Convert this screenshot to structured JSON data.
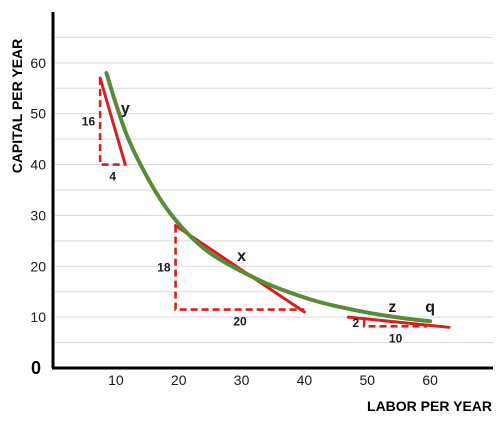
{
  "colors": {
    "curve": "#5a8a3a",
    "tangent": "#d42020",
    "triangle": "#d42020",
    "grid": "#d9d9d9",
    "axis": "#000000"
  },
  "chart_data": {
    "type": "line",
    "title": "",
    "xlabel": "LABOR PER YEAR",
    "ylabel": "CAPITAL PER YEAR",
    "xlim": [
      0,
      70
    ],
    "ylim": [
      0,
      70
    ],
    "origin_label": "0",
    "x_ticks": [
      10,
      20,
      30,
      40,
      50,
      60
    ],
    "y_ticks": [
      10,
      20,
      30,
      40,
      50,
      60
    ],
    "grid": "horizontal",
    "series": [
      {
        "x": [
          8.5,
          10,
          12,
          15,
          18,
          21,
          24,
          27,
          30,
          34,
          38,
          42,
          46,
          50,
          54,
          57,
          60
        ],
        "y": [
          58,
          52,
          45,
          37.5,
          31.5,
          27,
          23.5,
          21,
          19,
          16.6,
          14.7,
          13.1,
          11.9,
          10.9,
          10.1,
          9.6,
          9.2
        ]
      }
    ],
    "tangents": [
      {
        "label": "y",
        "x": [
          7.5,
          11.5
        ],
        "y": [
          57,
          40
        ]
      },
      {
        "label": "x",
        "x": [
          19.5,
          40
        ],
        "y": [
          28,
          11
        ]
      },
      {
        "label": "z",
        "x": [
          47,
          63
        ],
        "y": [
          10,
          8
        ]
      }
    ],
    "slope_triangles": [
      {
        "vertical": "16",
        "horizontal": "4",
        "corner": [
          7.5,
          40
        ],
        "top": 57,
        "right": 11.5
      },
      {
        "vertical": "18",
        "horizontal": "20",
        "corner": [
          19.5,
          11.5
        ],
        "top": 28,
        "right": 40
      },
      {
        "vertical": "2",
        "horizontal": "10",
        "corner": [
          49.5,
          8.2
        ],
        "top": 9.5,
        "right": 59.5
      }
    ],
    "annotations": [
      {
        "text": "y",
        "x": 11.5,
        "y": 50
      },
      {
        "text": "x",
        "x": 30,
        "y": 21
      },
      {
        "text": "z",
        "x": 54,
        "y": 11
      },
      {
        "text": "q",
        "x": 60,
        "y": 11
      }
    ]
  }
}
